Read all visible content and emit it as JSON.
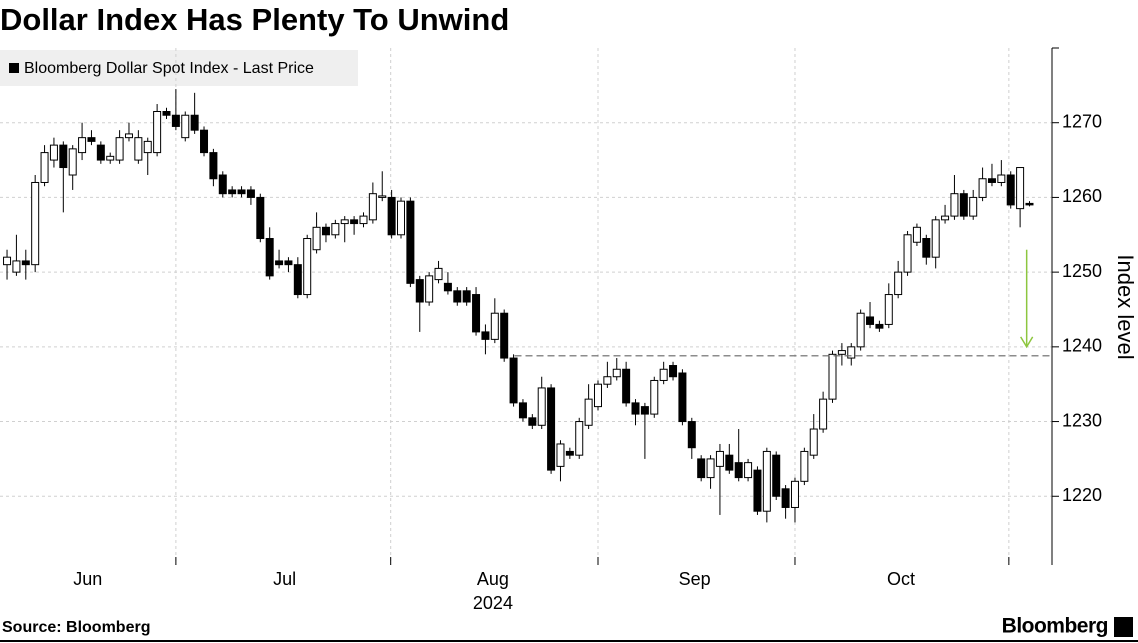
{
  "chart_data": {
    "type": "candlestick",
    "title": "Dollar Index Has Plenty To Unwind",
    "legend": "Bloomberg Dollar Spot Index - Last Price",
    "y_label": "Index level",
    "source": "Source: Bloomberg",
    "brand": "Bloomberg",
    "x_sublabel": "2024",
    "up_color": "#ffffff",
    "down_color": "#000000",
    "ylim": [
      1210.8,
      1280
    ],
    "yticks": [
      1220,
      1230,
      1240,
      1250,
      1260,
      1270
    ],
    "xlim": [
      -0.75,
      111.4
    ],
    "xticks": [
      {
        "value": 8.6,
        "label": "Jun"
      },
      {
        "value": 29.6,
        "label": "Jul"
      },
      {
        "value": 51.8,
        "label": "Aug"
      },
      {
        "value": 73.3,
        "label": "Sep"
      },
      {
        "value": 95.3,
        "label": "Oct"
      }
    ],
    "xgrid": [
      18.0,
      40.9,
      63.0,
      84.0,
      106.8
    ],
    "grid": true,
    "reference_line": {
      "value": 1238.8,
      "from": 54.1
    },
    "arrow": {
      "x": 108.7,
      "from": 1253,
      "to": 1240,
      "color": "#8dc63f"
    },
    "ohlc": [
      [
        1251,
        1253,
        1249,
        1252
      ],
      [
        1250,
        1255,
        1249.5,
        1251.5
      ],
      [
        1251.5,
        1253,
        1249,
        1251
      ],
      [
        1251,
        1263,
        1250,
        1262
      ],
      [
        1262,
        1267,
        1261.5,
        1266
      ],
      [
        1265,
        1268,
        1264,
        1267
      ],
      [
        1267,
        1267.5,
        1258,
        1264
      ],
      [
        1263,
        1267,
        1261,
        1266.5
      ],
      [
        1266,
        1270,
        1265,
        1268
      ],
      [
        1268,
        1269,
        1267,
        1267.5
      ],
      [
        1267,
        1267.5,
        1264.5,
        1265
      ],
      [
        1265,
        1266,
        1264.5,
        1265.5
      ],
      [
        1265,
        1269,
        1264.5,
        1268
      ],
      [
        1268,
        1270,
        1267.5,
        1268.5
      ],
      [
        1265,
        1269,
        1264.5,
        1268
      ],
      [
        1266,
        1268,
        1263,
        1267.5
      ],
      [
        1266,
        1272.5,
        1265.5,
        1271.5
      ],
      [
        1271.5,
        1272,
        1270.5,
        1271
      ],
      [
        1271,
        1274.5,
        1269,
        1269.5
      ],
      [
        1268,
        1271.5,
        1267.5,
        1271
      ],
      [
        1271,
        1274,
        1268.5,
        1269
      ],
      [
        1269,
        1269.5,
        1265.5,
        1266
      ],
      [
        1266,
        1266.5,
        1261.5,
        1262.5
      ],
      [
        1263,
        1263.5,
        1260,
        1260.5
      ],
      [
        1261,
        1261.5,
        1260,
        1260.5
      ],
      [
        1261,
        1261.5,
        1260,
        1260.5
      ],
      [
        1261,
        1261.5,
        1259,
        1260
      ],
      [
        1260,
        1260.5,
        1254,
        1254.5
      ],
      [
        1254.5,
        1256,
        1249,
        1249.5
      ],
      [
        1251.5,
        1253,
        1250.5,
        1251
      ],
      [
        1251.5,
        1252,
        1250,
        1251
      ],
      [
        1251,
        1252,
        1246.5,
        1247
      ],
      [
        1247,
        1255,
        1246.5,
        1254.5
      ],
      [
        1253,
        1258,
        1252.5,
        1256
      ],
      [
        1256,
        1256.5,
        1254,
        1255
      ],
      [
        1255,
        1257,
        1254.5,
        1256.5
      ],
      [
        1256.5,
        1257.5,
        1254,
        1257
      ],
      [
        1257,
        1257.5,
        1255,
        1256.5
      ],
      [
        1256.5,
        1258,
        1256,
        1257.5
      ],
      [
        1257,
        1262,
        1256.5,
        1260.5
      ],
      [
        1260,
        1263.5,
        1259.5,
        1260.2
      ],
      [
        1260,
        1261,
        1254.5,
        1255
      ],
      [
        1255,
        1260,
        1254.5,
        1259.5
      ],
      [
        1259.5,
        1260,
        1248,
        1248.5
      ],
      [
        1249,
        1249.5,
        1242,
        1246
      ],
      [
        1246,
        1250,
        1245.5,
        1249.5
      ],
      [
        1249,
        1251.5,
        1248.5,
        1250.5
      ],
      [
        1248.5,
        1250,
        1247,
        1247.5
      ],
      [
        1247.5,
        1248,
        1245.5,
        1246
      ],
      [
        1247.5,
        1248,
        1245.5,
        1246
      ],
      [
        1247,
        1248,
        1241.5,
        1242
      ],
      [
        1242,
        1243,
        1239,
        1241
      ],
      [
        1241,
        1246.5,
        1240.5,
        1244.5
      ],
      [
        1244.5,
        1245,
        1238,
        1238.5
      ],
      [
        1238.5,
        1239,
        1232,
        1232.5
      ],
      [
        1232.5,
        1233,
        1230,
        1230.5
      ],
      [
        1230.5,
        1231,
        1229,
        1229.5
      ],
      [
        1229.5,
        1236,
        1229,
        1234.5
      ],
      [
        1234.5,
        1235,
        1223,
        1223.5
      ],
      [
        1224,
        1227.5,
        1222,
        1227
      ],
      [
        1226,
        1226.5,
        1225,
        1225.5
      ],
      [
        1225.5,
        1230.5,
        1225,
        1230
      ],
      [
        1229.5,
        1235,
        1229,
        1233
      ],
      [
        1232,
        1235.5,
        1231.5,
        1235
      ],
      [
        1235,
        1238,
        1234.5,
        1236
      ],
      [
        1236,
        1238.5,
        1235.5,
        1237
      ],
      [
        1237,
        1238,
        1232,
        1232.5
      ],
      [
        1232.5,
        1233,
        1229.5,
        1231
      ],
      [
        1232,
        1232.5,
        1225,
        1231
      ],
      [
        1231,
        1236,
        1230.5,
        1235.5
      ],
      [
        1235.5,
        1238,
        1235,
        1237
      ],
      [
        1237.5,
        1238,
        1235.5,
        1236
      ],
      [
        1236.5,
        1237,
        1229.5,
        1230
      ],
      [
        1230,
        1230.5,
        1225,
        1226.5
      ],
      [
        1225,
        1225.5,
        1222,
        1222.5
      ],
      [
        1222.5,
        1225.5,
        1221,
        1225
      ],
      [
        1224,
        1227,
        1217.5,
        1226
      ],
      [
        1225.5,
        1227,
        1223,
        1223.5
      ],
      [
        1224.5,
        1229,
        1222,
        1222.5
      ],
      [
        1222.5,
        1225,
        1222,
        1224.5
      ],
      [
        1223.5,
        1224,
        1217.5,
        1218
      ],
      [
        1218,
        1226.5,
        1216.5,
        1226
      ],
      [
        1225.5,
        1226,
        1219.5,
        1220
      ],
      [
        1221,
        1221.5,
        1217,
        1218.5
      ],
      [
        1218.5,
        1222.5,
        1216.5,
        1222
      ],
      [
        1222,
        1226.5,
        1221.5,
        1226
      ],
      [
        1225.5,
        1231,
        1225,
        1229
      ],
      [
        1229,
        1234,
        1228.5,
        1233
      ],
      [
        1233,
        1239.5,
        1232.5,
        1239
      ],
      [
        1239,
        1240.5,
        1237.5,
        1239.5
      ],
      [
        1238.5,
        1240.5,
        1237.5,
        1240
      ],
      [
        1240,
        1245,
        1239.5,
        1244.5
      ],
      [
        1244,
        1246,
        1242.5,
        1243
      ],
      [
        1243,
        1243.5,
        1242,
        1242.5
      ],
      [
        1243,
        1248.5,
        1242.5,
        1247
      ],
      [
        1247,
        1251.5,
        1246.5,
        1250
      ],
      [
        1250,
        1255.5,
        1249.5,
        1255
      ],
      [
        1254,
        1256.5,
        1253.5,
        1256
      ],
      [
        1254.5,
        1255,
        1251,
        1252
      ],
      [
        1252,
        1257.5,
        1250.5,
        1257
      ],
      [
        1257,
        1259,
        1256.5,
        1257.5
      ],
      [
        1257.5,
        1263,
        1257,
        1260.5
      ],
      [
        1260.5,
        1261,
        1257,
        1257.5
      ],
      [
        1257.5,
        1261,
        1257,
        1260
      ],
      [
        1260,
        1264,
        1259.5,
        1262.5
      ],
      [
        1262.5,
        1264.5,
        1261.5,
        1262
      ],
      [
        1262,
        1265,
        1261.5,
        1263
      ],
      [
        1263,
        1263.5,
        1258.5,
        1259
      ],
      [
        1258.5,
        1264,
        1256,
        1264
      ],
      [
        1259.2,
        1259.5,
        1258.8,
        1259
      ]
    ]
  }
}
